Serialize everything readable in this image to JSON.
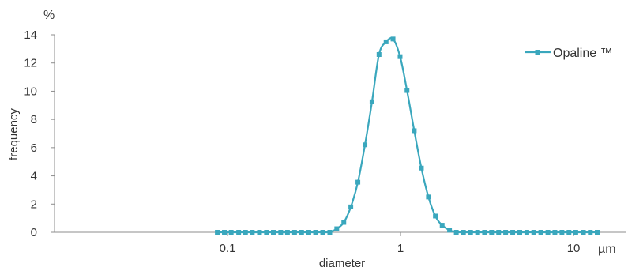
{
  "chart_data": {
    "type": "line",
    "x_scale": "log",
    "xlim": [
      0.01,
      20
    ],
    "ylim": [
      0,
      14
    ],
    "y_ticks": [
      0,
      2,
      4,
      6,
      8,
      10,
      12,
      14
    ],
    "x_ticks": [
      0.1,
      1,
      10
    ],
    "y_tick_labels": [
      "0",
      "2",
      "4",
      "6",
      "8",
      "10",
      "12",
      "14"
    ],
    "x_tick_labels": [
      "0.1",
      "1",
      "10"
    ],
    "xlabel": "diameter",
    "ylabel": "frequency",
    "y_unit": "%",
    "x_unit": "µm",
    "grid": false,
    "legend_position": "top-right",
    "series": [
      {
        "name": "Opaline ™",
        "color": "#3aa7bd",
        "marker": "square",
        "x": [
          0.0873,
          0.0959,
          0.105,
          0.116,
          0.127,
          0.139,
          0.153,
          0.168,
          0.184,
          0.203,
          0.222,
          0.244,
          0.268,
          0.295,
          0.323,
          0.355,
          0.39,
          0.428,
          0.47,
          0.516,
          0.567,
          0.623,
          0.684,
          0.751,
          0.825,
          0.905,
          0.994,
          1.09,
          1.2,
          1.32,
          1.45,
          1.59,
          1.74,
          1.92,
          2.1,
          2.31,
          2.54,
          2.79,
          3.06,
          3.36,
          3.69,
          4.05,
          4.45,
          4.89,
          5.37,
          5.89,
          6.47,
          7.11,
          7.8,
          8.57,
          9.41,
          10.3,
          11.4,
          12.5,
          13.7
        ],
        "values": [
          0,
          0,
          0,
          0,
          0,
          0,
          0,
          0,
          0,
          0,
          0,
          0,
          0,
          0,
          0,
          0,
          0,
          0.25,
          0.7,
          1.8,
          3.55,
          6.2,
          9.25,
          12.6,
          13.5,
          13.7,
          12.45,
          10.05,
          7.2,
          4.55,
          2.5,
          1.15,
          0.5,
          0.15,
          0,
          0,
          0,
          0,
          0,
          0,
          0,
          0,
          0,
          0,
          0,
          0,
          0,
          0,
          0,
          0,
          0,
          0,
          0,
          0,
          0
        ]
      }
    ]
  }
}
